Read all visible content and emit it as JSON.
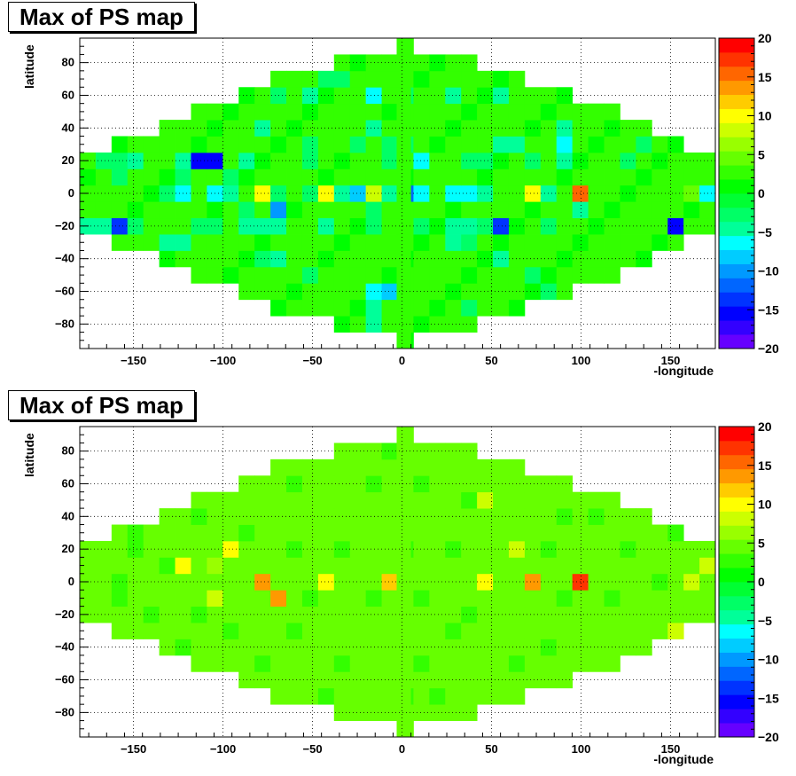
{
  "chart_data": [
    {
      "type": "heatmap",
      "title": "Max of PS map",
      "xlabel": "-longitude",
      "ylabel": "latitude",
      "xlim": [
        -180,
        175
      ],
      "ylim": [
        -95,
        95
      ],
      "xticks": [
        -150,
        -100,
        -50,
        0,
        50,
        100,
        150
      ],
      "yticks": [
        -80,
        -60,
        -40,
        -20,
        0,
        20,
        40,
        60,
        80
      ],
      "zlim": [
        -20,
        20
      ],
      "zticks": [
        -20,
        -15,
        -10,
        -5,
        0,
        5,
        10,
        15,
        20
      ],
      "grid": true,
      "colorbar": "right",
      "background_value": 2,
      "special_cells": [
        [
          -160,
          -20,
          -13
        ],
        [
          -152,
          -20,
          -13
        ],
        [
          -175,
          -20,
          -5
        ],
        [
          -168,
          -20,
          -5
        ],
        [
          -145,
          -20,
          -3
        ],
        [
          -115,
          -20,
          -3
        ],
        [
          -108,
          -20,
          -3
        ],
        [
          -90,
          -20,
          -4
        ],
        [
          -80,
          -20,
          -5
        ],
        [
          -72,
          -20,
          -5
        ],
        [
          -45,
          -20,
          -5
        ],
        [
          -15,
          -20,
          -2
        ],
        [
          15,
          -20,
          -3
        ],
        [
          28,
          -20,
          -5
        ],
        [
          35,
          -20,
          -4
        ],
        [
          42,
          -20,
          -3
        ],
        [
          55,
          -20,
          -13
        ],
        [
          80,
          -20,
          -3
        ],
        [
          155,
          -20,
          -16
        ],
        [
          -180,
          0,
          2
        ],
        [
          -132,
          0,
          -3
        ],
        [
          -118,
          0,
          -6
        ],
        [
          -108,
          0,
          -6
        ],
        [
          -100,
          0,
          -4
        ],
        [
          -80,
          0,
          10
        ],
        [
          -65,
          0,
          -3
        ],
        [
          -55,
          0,
          -3
        ],
        [
          -45,
          0,
          10
        ],
        [
          -35,
          0,
          -5
        ],
        [
          -28,
          0,
          -9
        ],
        [
          -20,
          0,
          9
        ],
        [
          -10,
          0,
          -4
        ],
        [
          0,
          0,
          -12
        ],
        [
          8,
          0,
          -6
        ],
        [
          15,
          0,
          -6
        ],
        [
          28,
          0,
          -7
        ],
        [
          35,
          0,
          -7
        ],
        [
          42,
          0,
          -7
        ],
        [
          50,
          0,
          -5
        ],
        [
          70,
          0,
          10
        ],
        [
          80,
          0,
          -5
        ],
        [
          100,
          0,
          15
        ],
        [
          162,
          0,
          4
        ],
        [
          172,
          0,
          -7
        ],
        [
          -170,
          20,
          -2
        ],
        [
          -155,
          20,
          -3
        ],
        [
          -145,
          20,
          -5
        ],
        [
          -122,
          20,
          -4
        ],
        [
          -110,
          20,
          -15
        ],
        [
          -102,
          20,
          -15
        ],
        [
          -88,
          20,
          -4
        ],
        [
          -55,
          20,
          -3
        ],
        [
          -10,
          20,
          -3
        ],
        [
          15,
          20,
          -6
        ],
        [
          35,
          20,
          -3
        ],
        [
          50,
          20,
          -2
        ],
        [
          70,
          20,
          -3
        ],
        [
          92,
          20,
          -4
        ],
        [
          128,
          20,
          -2
        ],
        [
          -155,
          10,
          -3
        ],
        [
          -120,
          10,
          -3
        ],
        [
          -100,
          10,
          -3
        ],
        [
          -90,
          -10,
          -3
        ],
        [
          -72,
          -10,
          -10
        ],
        [
          98,
          -10,
          -5
        ],
        [
          -20,
          -10,
          -2
        ],
        [
          -132,
          -30,
          -4
        ],
        [
          -118,
          -30,
          -4
        ],
        [
          30,
          -30,
          -4
        ],
        [
          40,
          -30,
          -3
        ],
        [
          -80,
          -40,
          -2
        ],
        [
          -72,
          -40,
          -4
        ],
        [
          55,
          -40,
          -4
        ],
        [
          -48,
          -50,
          -2
        ],
        [
          70,
          -50,
          -3
        ],
        [
          -15,
          -60,
          -6
        ],
        [
          -8,
          -60,
          -9
        ],
        [
          82,
          -60,
          -3
        ],
        [
          -18,
          -70,
          -4
        ],
        [
          40,
          -70,
          -2
        ],
        [
          -18,
          -80,
          -5
        ],
        [
          -40,
          70,
          -3
        ],
        [
          -30,
          70,
          -2
        ],
        [
          -65,
          60,
          -3
        ],
        [
          -50,
          60,
          -4
        ],
        [
          -15,
          60,
          -6
        ],
        [
          0,
          60,
          -2
        ],
        [
          28,
          60,
          -4
        ],
        [
          55,
          60,
          -4
        ],
        [
          -15,
          40,
          -5
        ],
        [
          -80,
          40,
          -4
        ],
        [
          -5,
          30,
          -3
        ],
        [
          -50,
          30,
          -3
        ],
        [
          -25,
          30,
          -2
        ],
        [
          60,
          30,
          -4
        ],
        [
          55,
          30,
          -4
        ],
        [
          90,
          30,
          -7
        ],
        [
          90,
          40,
          -5
        ],
        [
          135,
          30,
          -3
        ],
        [
          0,
          30,
          -3
        ]
      ]
    },
    {
      "type": "heatmap",
      "title": "Max of PS map",
      "xlabel": "-longitude",
      "ylabel": "latitude",
      "xlim": [
        -180,
        175
      ],
      "ylim": [
        -95,
        95
      ],
      "xticks": [
        -150,
        -100,
        -50,
        0,
        50,
        100,
        150
      ],
      "yticks": [
        -80,
        -60,
        -40,
        -20,
        0,
        20,
        40,
        60,
        80
      ],
      "zlim": [
        -20,
        20
      ],
      "zticks": [
        -20,
        -15,
        -10,
        -5,
        0,
        5,
        10,
        15,
        20
      ],
      "grid": true,
      "colorbar": "right",
      "background_value": 5,
      "special_cells": [
        [
          -100,
          20,
          10
        ],
        [
          -118,
          10,
          10
        ],
        [
          -108,
          10,
          6
        ],
        [
          170,
          10,
          9
        ],
        [
          60,
          20,
          9
        ],
        [
          -80,
          0,
          14
        ],
        [
          -45,
          0,
          10
        ],
        [
          -10,
          0,
          11
        ],
        [
          45,
          0,
          10
        ],
        [
          72,
          0,
          14
        ],
        [
          100,
          0,
          18
        ],
        [
          162,
          0,
          9
        ],
        [
          -108,
          -10,
          9
        ],
        [
          -72,
          -10,
          14
        ],
        [
          155,
          -30,
          9
        ],
        [
          45,
          50,
          9
        ],
        [
          -45,
          60,
          4
        ],
        [
          -150,
          20,
          2
        ],
        [
          -130,
          10,
          2
        ],
        [
          -90,
          30,
          2
        ],
        [
          -60,
          20,
          2
        ],
        [
          -30,
          20,
          2
        ],
        [
          0,
          20,
          2
        ],
        [
          30,
          20,
          2
        ],
        [
          80,
          20,
          2
        ],
        [
          130,
          20,
          2
        ],
        [
          -160,
          -10,
          2
        ],
        [
          -50,
          -10,
          2
        ],
        [
          -20,
          -10,
          2
        ],
        [
          10,
          -10,
          2
        ],
        [
          90,
          -10,
          2
        ],
        [
          120,
          -10,
          2
        ],
        [
          -140,
          -20,
          2
        ],
        [
          -110,
          -20,
          2
        ],
        [
          40,
          -20,
          2
        ],
        [
          -100,
          -30,
          2
        ],
        [
          -60,
          -30,
          2
        ],
        [
          25,
          -30,
          2
        ],
        [
          -80,
          -50,
          2
        ],
        [
          -30,
          -50,
          2
        ],
        [
          10,
          -50,
          2
        ],
        [
          60,
          -50,
          2
        ],
        [
          -40,
          -70,
          2
        ],
        [
          0,
          -70,
          2
        ],
        [
          20,
          -70,
          2
        ],
        [
          -60,
          60,
          2
        ],
        [
          -20,
          60,
          2
        ],
        [
          10,
          60,
          2
        ],
        [
          40,
          50,
          2
        ],
        [
          -110,
          40,
          2
        ],
        [
          90,
          40,
          2
        ],
        [
          110,
          40,
          2
        ],
        [
          -10,
          80,
          2
        ],
        [
          -150,
          30,
          2
        ],
        [
          150,
          30,
          2
        ],
        [
          -160,
          0,
          2
        ],
        [
          140,
          0,
          2
        ],
        [
          -120,
          -40,
          2
        ],
        [
          80,
          -40,
          2
        ]
      ]
    }
  ],
  "panels": [
    {
      "title": "Max of PS map",
      "xlabel": "-longitude",
      "ylabel": "latitude"
    },
    {
      "title": "Max of PS map",
      "xlabel": "-longitude",
      "ylabel": "latitude"
    }
  ]
}
